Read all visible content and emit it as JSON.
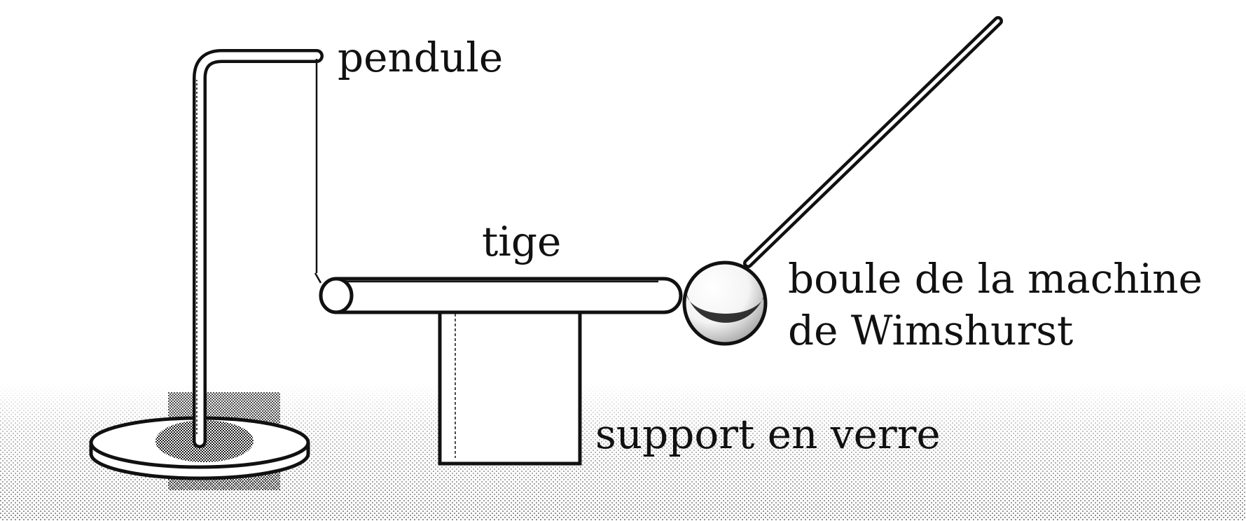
{
  "labels": {
    "pendulum": "pendule",
    "rod": "tige",
    "ball_line1": "boule de la machine",
    "ball_line2": "de Wimshurst",
    "glass_support": "support en verre"
  },
  "colors": {
    "ink": "#111111",
    "background": "#ffffff",
    "stipple": "#000000"
  }
}
